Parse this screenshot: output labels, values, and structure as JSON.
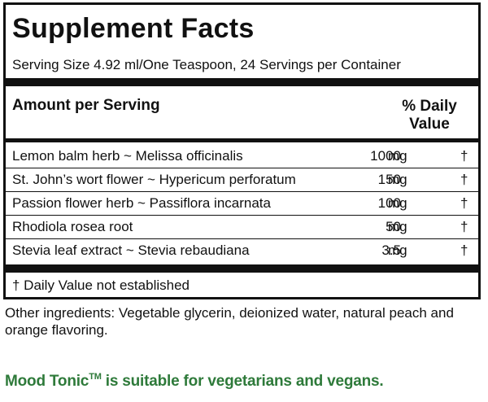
{
  "panel": {
    "title": "Supplement Facts",
    "serving": "Serving Size 4.92 ml/One Teaspoon, 24 Servings per Container",
    "header_amount": "Amount per Serving",
    "header_dv_line1": "% Daily",
    "header_dv_line2": "Value",
    "rows": [
      {
        "name": "Lemon balm herb ~ Melissa officinalis",
        "amount": "1000",
        "unit": "mg",
        "dv": "†"
      },
      {
        "name": "St. John’s wort flower ~ Hypericum perforatum",
        "amount": "150",
        "unit": "mg",
        "dv": "†"
      },
      {
        "name": "Passion flower herb ~ Passiflora incarnata",
        "amount": "100",
        "unit": "mg",
        "dv": "†"
      },
      {
        "name": "Rhodiola rosea root",
        "amount": "50",
        "unit": "mg",
        "dv": "†"
      },
      {
        "name": "Stevia leaf extract ~ Stevia rebaudiana",
        "amount": "3.5",
        "unit": "mg",
        "dv": "†"
      }
    ],
    "footnote": "† Daily Value not established"
  },
  "other_ingredients": "Other ingredients: Vegetable glycerin, deionized water, natural peach and orange flavoring.",
  "vegetarian": {
    "brand": "Mood Tonic",
    "mark": "TM",
    "text": " is suitable for vegetarians and vegans."
  },
  "colors": {
    "text": "#111111",
    "accent_green": "#2e7a3a"
  }
}
